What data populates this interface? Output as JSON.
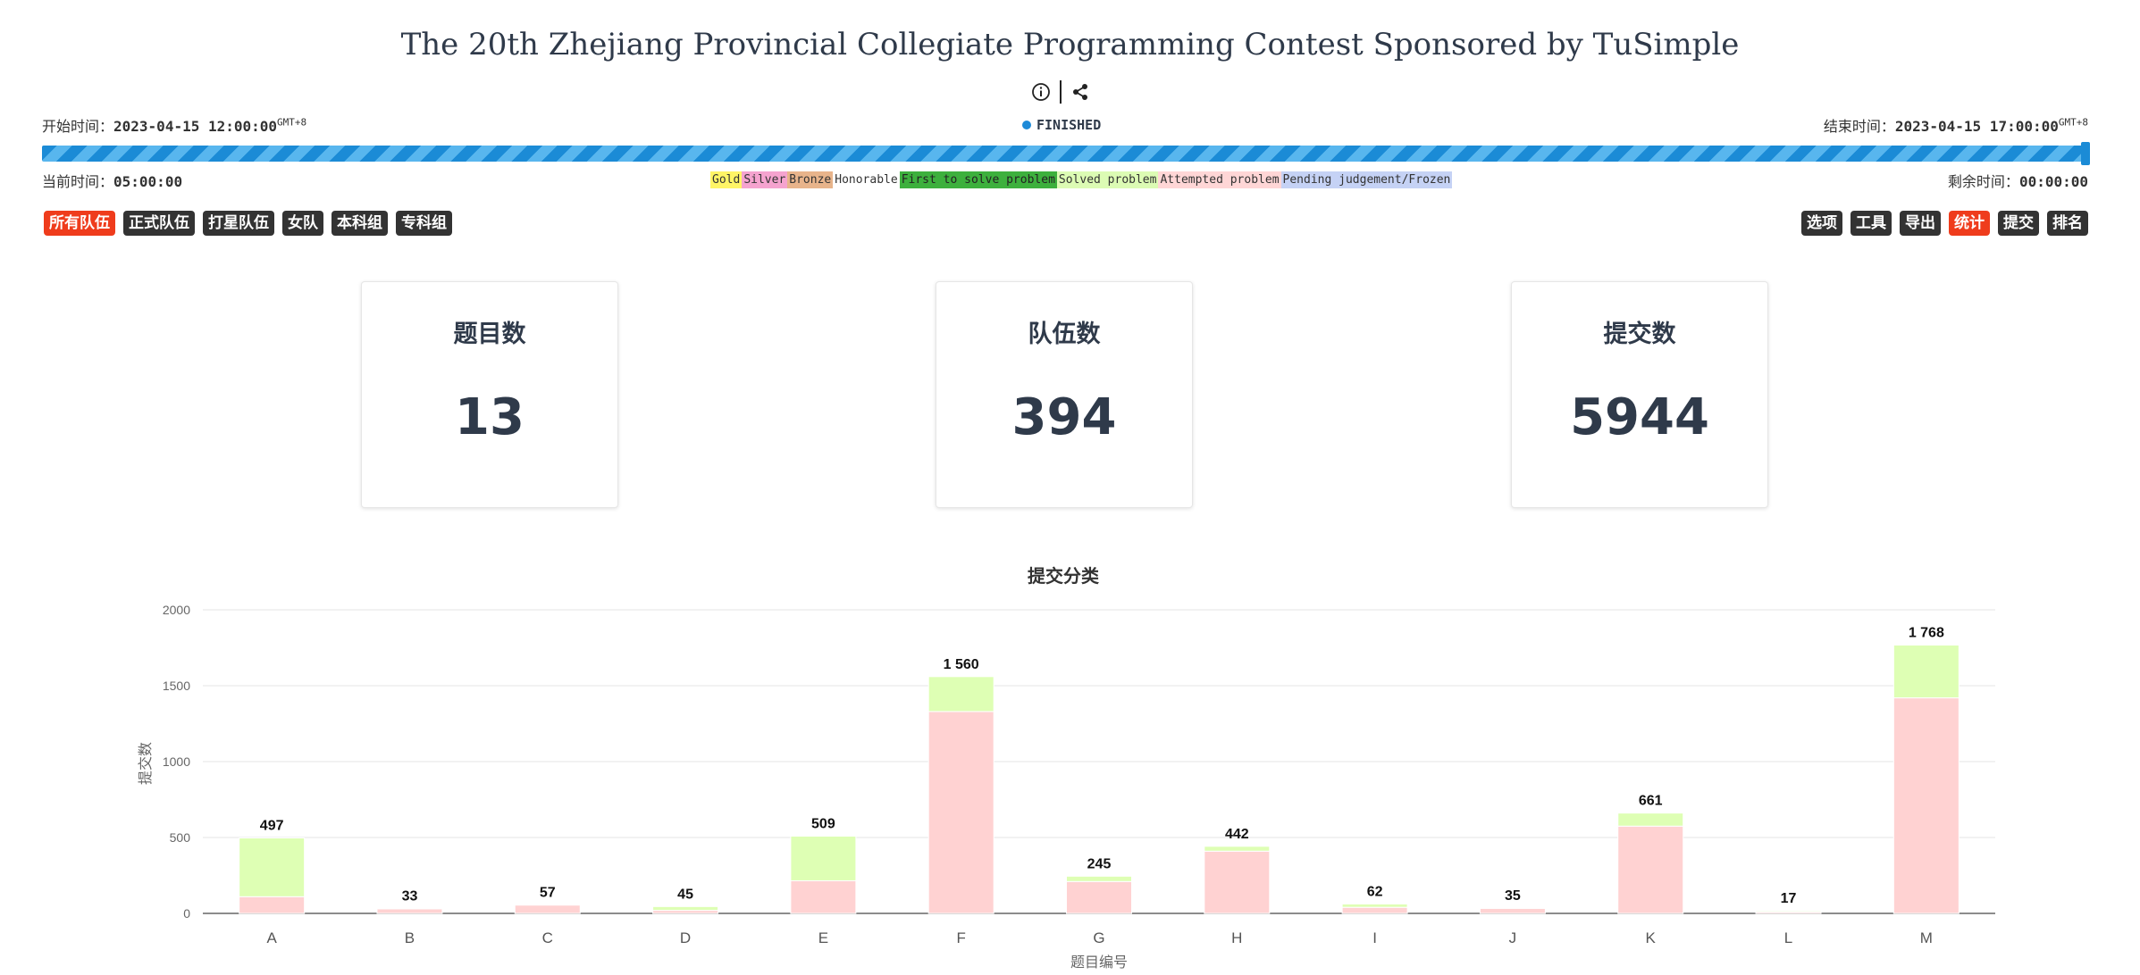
{
  "header": {
    "title": "The 20th Zhejiang Provincial Collegiate Programming Contest Sponsored by TuSimple",
    "start_label": "开始时间：",
    "start_value": "2023-04-15 12:00:00",
    "start_tz": "GMT+8",
    "end_label": "结束时间：",
    "end_value": "2023-04-15 17:00:00",
    "end_tz": "GMT+8",
    "status": "FINISHED",
    "current_label": "当前时间：",
    "current_value": "05:00:00",
    "remaining_label": "剩余时间：",
    "remaining_value": "00:00:00",
    "progress": 1.0
  },
  "legend": [
    {
      "label": "Gold",
      "bg": "#fff566",
      "color": "#333"
    },
    {
      "label": "Silver",
      "bg": "#f5a3cf",
      "color": "#333"
    },
    {
      "label": "Bronze",
      "bg": "#e8b48b",
      "color": "#333"
    },
    {
      "label": "Honorable",
      "bg": "#ffffff",
      "color": "#333"
    },
    {
      "label": "First to solve problem",
      "bg": "#3db03d",
      "color": "#222"
    },
    {
      "label": "Solved problem",
      "bg": "#dcfbb4",
      "color": "#333"
    },
    {
      "label": "Attempted problem",
      "bg": "#ffd6d6",
      "color": "#333"
    },
    {
      "label": "Pending judgement/Frozen",
      "bg": "#c5d2f5",
      "color": "#333"
    }
  ],
  "filters": [
    "所有队伍",
    "正式队伍",
    "打星队伍",
    "女队",
    "本科组",
    "专科组"
  ],
  "tools": [
    "选项",
    "工具",
    "导出",
    "统计",
    "提交",
    "排名"
  ],
  "stats": [
    {
      "label": "题目数",
      "value": "13"
    },
    {
      "label": "队伍数",
      "value": "394"
    },
    {
      "label": "提交数",
      "value": "5944"
    }
  ],
  "colors": {
    "accent": "#ef3c1c",
    "solved": "#dcfbb4",
    "attempted": "#ffd6d6",
    "progress": "#1b8bd6"
  },
  "chart_data": {
    "type": "bar",
    "title": "提交分类",
    "xlabel": "题目编号",
    "ylabel": "提交数",
    "ylim": [
      0,
      2000
    ],
    "yticks": [
      0,
      500,
      1000,
      1500,
      2000
    ],
    "categories": [
      "A",
      "B",
      "C",
      "D",
      "E",
      "F",
      "G",
      "H",
      "I",
      "J",
      "K",
      "L",
      "M"
    ],
    "series": [
      {
        "values": [
          110,
          30,
          55,
          20,
          215,
          1330,
          210,
          410,
          40,
          33,
          575,
          10,
          1420
        ],
        "color": "#ffd2d2"
      },
      {
        "values": [
          387,
          3,
          2,
          25,
          294,
          230,
          35,
          32,
          22,
          2,
          86,
          7,
          348
        ],
        "color": "#deffb4"
      }
    ],
    "totals": [
      "497",
      "33",
      "57",
      "45",
      "509",
      "1 560",
      "245",
      "442",
      "62",
      "35",
      "661",
      "17",
      "1 768"
    ]
  }
}
